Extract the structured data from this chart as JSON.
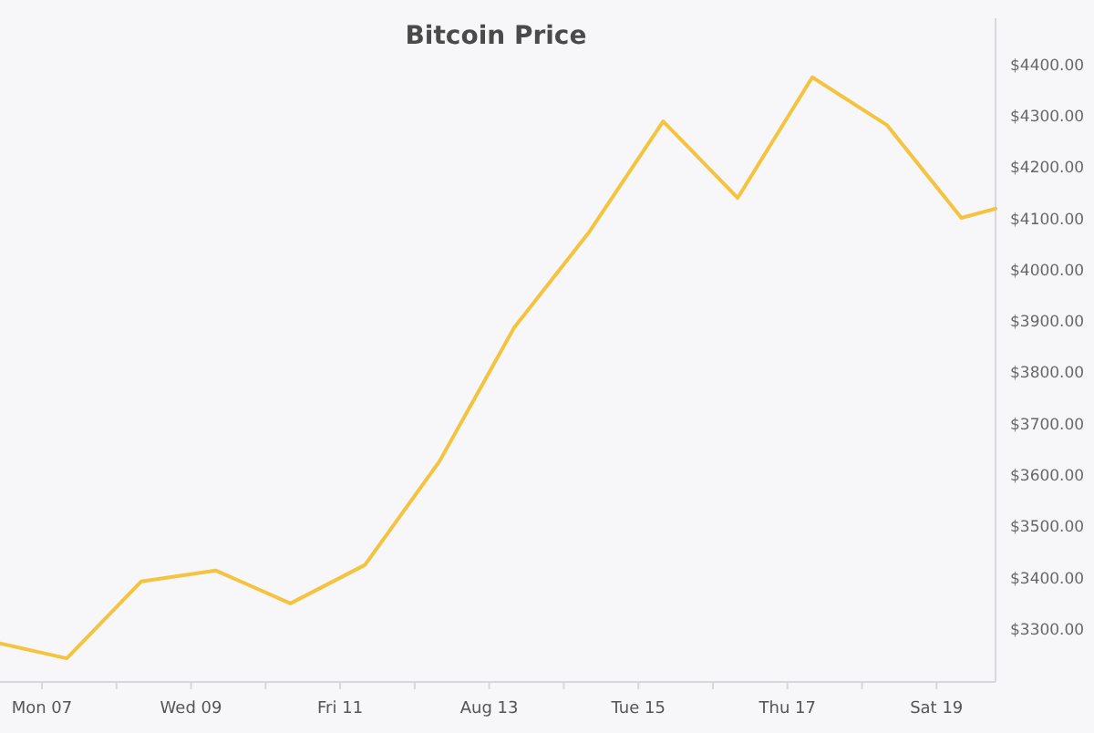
{
  "chart_data": {
    "type": "line",
    "title": "Bitcoin Price",
    "x": [
      "--08-06T10:30",
      "--08-07T08:00",
      "--08-08T08:00",
      "--08-09T08:00",
      "--08-10T08:00",
      "--08-11T08:00",
      "--08-12T08:00",
      "--08-13T08:00",
      "--08-14T08:00",
      "--08-15T08:00",
      "--08-16T08:00",
      "--08-17T08:00",
      "--08-18T08:00",
      "--08-19T08:00",
      "--08-19T19:00"
    ],
    "series": [
      {
        "color": "#f4c33f",
        "values": [
          3272,
          3243,
          3393,
          3414,
          3350,
          3425,
          3627,
          3887,
          4072,
          4289,
          4140,
          4375,
          4282,
          4101,
          4119
        ]
      }
    ],
    "xlim": [
      "--08-06T10:30",
      "--08-19T19:00"
    ],
    "xticks": [
      {
        "value": "--08-07",
        "label": "Mon 07"
      },
      {
        "value": "--08-08",
        "label": null
      },
      {
        "value": "--08-09",
        "label": "Wed 09"
      },
      {
        "value": "--08-10",
        "label": null
      },
      {
        "value": "--08-11",
        "label": "Fri 11"
      },
      {
        "value": "--08-12",
        "label": null
      },
      {
        "value": "--08-13",
        "label": "Aug 13"
      },
      {
        "value": "--08-14",
        "label": null
      },
      {
        "value": "--08-15",
        "label": "Tue 15"
      },
      {
        "value": "--08-16",
        "label": null
      },
      {
        "value": "--08-17",
        "label": "Thu 17"
      },
      {
        "value": "--08-18",
        "label": null
      },
      {
        "value": "--08-19",
        "label": "Sat 19"
      }
    ],
    "ylim": [
      3197,
      4490
    ],
    "yticks": [
      {
        "value": 3300,
        "label": "$3300.00"
      },
      {
        "value": 3400,
        "label": "$3400.00"
      },
      {
        "value": 3500,
        "label": "$3500.00"
      },
      {
        "value": 3600,
        "label": "$3600.00"
      },
      {
        "value": 3700,
        "label": "$3700.00"
      },
      {
        "value": 3800,
        "label": "$3800.00"
      },
      {
        "value": 3900,
        "label": "$3900.00"
      },
      {
        "value": 4000,
        "label": "$4000.00"
      },
      {
        "value": 4100,
        "label": "$4100.00"
      },
      {
        "value": 4200,
        "label": "$4200.00"
      },
      {
        "value": 4300,
        "label": "$4300.00"
      },
      {
        "value": 4400,
        "label": "$4400.00"
      }
    ],
    "grid": false,
    "marker": "none",
    "line_style": "solid"
  }
}
